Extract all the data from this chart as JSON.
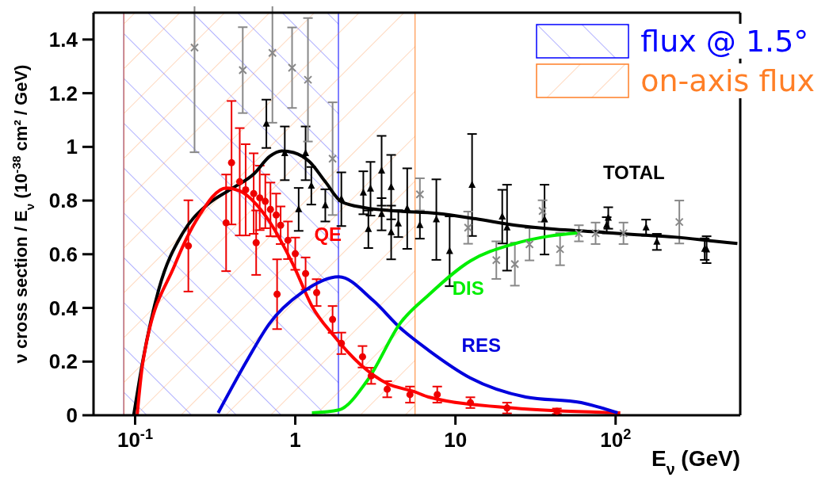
{
  "chart_data": {
    "type": "line",
    "xlabel": "E$_{ν}$ (GeV)",
    "ylabel": "ν cross section / E$_{ν}$ (10$^{-38}$ cm² / GeV)",
    "log": "x",
    "xlim": [
      0.055,
      600
    ],
    "ylim": [
      0,
      1.5
    ],
    "xticks": [
      {
        "value": 0.1,
        "label": "10$^{-1}$"
      },
      1,
      10,
      {
        "value": 100,
        "label": "10$^{2}$"
      }
    ],
    "yticks": [
      0,
      0.2,
      0.4,
      0.6,
      0.8,
      1,
      1.2,
      1.4
    ],
    "legend": "top right",
    "marker": "none",
    "line_style": "solid",
    "bands": [
      {
        "axis": "x",
        "from": 0.085,
        "to": 1.86,
        "label": "flux @ 1.5°",
        "color": "#0000ff"
      },
      {
        "axis": "x",
        "from": 0.085,
        "to": 5.6,
        "label": "on-axis flux",
        "color": "#ff7f27"
      }
    ],
    "series": [
      {
        "name": "TOTAL",
        "color": "#000000",
        "x": [
          0.098,
          0.112,
          0.141,
          0.198,
          0.279,
          0.393,
          0.553,
          0.694,
          0.824,
          0.977,
          1.23,
          1.54,
          1.94,
          2.73,
          4.3,
          7.6,
          13.4,
          23.7,
          42,
          74,
          131,
          232,
          410,
          576
        ],
        "values": [
          0,
          0.206,
          0.472,
          0.678,
          0.782,
          0.841,
          0.9,
          0.965,
          0.985,
          0.979,
          0.944,
          0.87,
          0.796,
          0.773,
          0.761,
          0.752,
          0.732,
          0.708,
          0.693,
          0.684,
          0.673,
          0.664,
          0.649,
          0.64
        ]
      },
      {
        "name": "QE",
        "color": "#ff0000",
        "x": [
          0.103,
          0.112,
          0.177,
          0.249,
          0.371,
          0.45,
          0.663,
          0.977,
          1.27,
          1.73,
          2.55,
          3.75,
          5.53,
          6.8,
          22.7,
          107
        ],
        "values": [
          0,
          0.2,
          0.56,
          0.74,
          0.847,
          0.836,
          0.737,
          0.557,
          0.407,
          0.298,
          0.189,
          0.118,
          0.088,
          0.068,
          0.027,
          0.009
        ]
      },
      {
        "name": "RES",
        "color": "#0000dd",
        "x": [
          0.33,
          0.505,
          0.687,
          1.1,
          1.87,
          3.06,
          4.55,
          6.8,
          12.4,
          27.5,
          61,
          103
        ],
        "values": [
          0.009,
          0.209,
          0.34,
          0.457,
          0.516,
          0.428,
          0.324,
          0.242,
          0.139,
          0.068,
          0.047,
          0.009
        ]
      },
      {
        "name": "DIS",
        "color": "#00ee00",
        "x": [
          1.27,
          1.87,
          2.82,
          4.55,
          6.8,
          12.4,
          22.7,
          38,
          60
        ],
        "values": [
          0.009,
          0.02,
          0.13,
          0.345,
          0.448,
          0.575,
          0.637,
          0.667,
          0.68
        ]
      },
      {
        "type": "scatter",
        "marker": "circle",
        "color": "#ee0000",
        "x": [
          0.4,
          0.45,
          0.49,
          0.55,
          0.6,
          0.65,
          0.7,
          0.76,
          0.81,
          0.9,
          1.0,
          1.16,
          1.36,
          1.71,
          0.215,
          0.37,
          0.57,
          0.77,
          1.94,
          2.63,
          2.98,
          3.75,
          5.2,
          7.7,
          12.4,
          21,
          43
        ],
        "values": [
          0.941,
          0.87,
          0.84,
          0.826,
          0.81,
          0.797,
          0.767,
          0.746,
          0.708,
          0.652,
          0.602,
          0.528,
          0.457,
          0.357,
          0.631,
          0.717,
          0.643,
          0.451,
          0.268,
          0.218,
          0.147,
          0.097,
          0.077,
          0.077,
          0.047,
          0.027,
          0.015
        ],
        "errors": [
          0.23,
          0.2,
          0.17,
          0.15,
          0.12,
          0.1,
          0.1,
          0.08,
          0.07,
          0.07,
          0.06,
          0.06,
          0.05,
          0.05,
          0.17,
          0.18,
          0.12,
          0.13,
          0.04,
          0.04,
          0.03,
          0.03,
          0.03,
          0.03,
          0.02,
          0.02,
          0.01
        ]
      },
      {
        "type": "scatter",
        "marker": "triangle",
        "color": "#000000",
        "x": [
          0.66,
          0.86,
          1.16,
          1.26,
          1.54,
          1.05,
          1.94,
          2.66,
          2.95,
          3.46,
          3.97,
          2.86,
          3.46,
          4.4,
          3.97,
          5.0,
          6.0,
          7.6,
          9.2,
          12.7,
          19.6,
          21,
          36,
          90,
          370,
          155,
          88,
          181,
          360
        ],
        "values": [
          1.086,
          0.976,
          0.976,
          0.855,
          0.782,
          0.767,
          0.805,
          0.829,
          0.844,
          0.911,
          0.85,
          0.693,
          0.749,
          0.714,
          0.681,
          0.77,
          0.708,
          0.729,
          0.611,
          0.858,
          0.74,
          0.699,
          0.729,
          0.735,
          0.617,
          0.699,
          0.708,
          0.646,
          0.619
        ],
        "errors": [
          0.09,
          0.1,
          0.1,
          0.07,
          0.06,
          0.08,
          0.1,
          0.08,
          0.1,
          0.13,
          0.12,
          0.07,
          0.06,
          0.05,
          0.1,
          0.15,
          0.05,
          0.15,
          0.13,
          0.19,
          0.1,
          0.16,
          0.13,
          0.04,
          0.05,
          0.03,
          0.03,
          0.03,
          0.04
        ]
      },
      {
        "type": "scatter",
        "marker": "cross",
        "color": "#888888",
        "x": [
          0.235,
          0.47,
          0.72,
          0.955,
          1.2,
          1.71,
          6.0,
          18,
          23.5,
          45,
          29,
          12,
          59,
          250,
          112,
          75,
          35
        ],
        "values": [
          1.37,
          1.286,
          1.35,
          1.295,
          1.25,
          0.956,
          0.823,
          0.578,
          0.563,
          0.619,
          0.637,
          0.699,
          0.678,
          0.72,
          0.678,
          0.678,
          0.761
        ],
        "errors": [
          0.39,
          0.16,
          0.26,
          0.15,
          0.23,
          0.21,
          0.06,
          0.07,
          0.08,
          0.06,
          0.06,
          0.06,
          0.03,
          0.08,
          0.04,
          0.04,
          0.04
        ]
      }
    ]
  }
}
